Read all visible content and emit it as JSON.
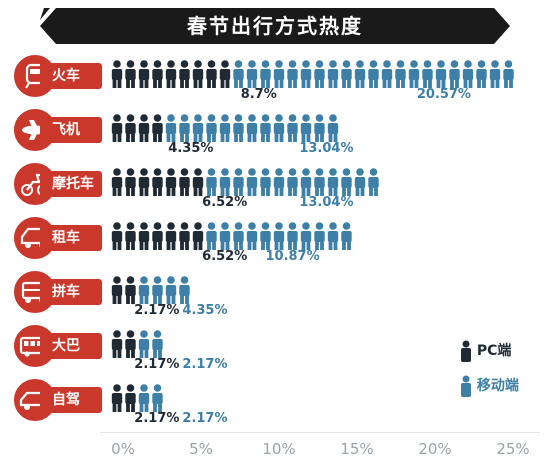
{
  "title": "春节出行方式热度",
  "chart_data": {
    "type": "bar",
    "title": "春节出行方式热度",
    "categories": [
      "火车",
      "飞机",
      "摩托车",
      "租车",
      "拼车",
      "大巴",
      "自驾"
    ],
    "series": [
      {
        "name": "PC端",
        "values": [
          8.7,
          4.35,
          6.52,
          6.52,
          2.17,
          2.17,
          2.17
        ],
        "labels": [
          "8.7%",
          "4.35%",
          "6.52%",
          "6.52%",
          "2.17%",
          "2.17%",
          "2.17%"
        ]
      },
      {
        "name": "移动端",
        "values": [
          20.57,
          13.04,
          13.04,
          10.87,
          4.35,
          2.17,
          2.17
        ],
        "labels": [
          "20.57%",
          "13.04%",
          "13.04%",
          "10.87%",
          "4.35%",
          "2.17%",
          "2.17%"
        ]
      }
    ],
    "xticks": [
      "0%",
      "5%",
      "10%",
      "15%",
      "20%",
      "25%"
    ],
    "xlim": [
      0,
      25
    ],
    "person_unit_percent": 1.0,
    "icons": [
      "train-icon",
      "airplane-icon",
      "motorcycle-icon",
      "car-icon",
      "jeep-icon",
      "bus-icon",
      "sedan-icon"
    ]
  },
  "legend": [
    {
      "label": "PC端",
      "color": "#1f2a35"
    },
    {
      "label": "移动端",
      "color": "#3d7fa6"
    }
  ],
  "colors": {
    "pc": "#1f2a35",
    "mobile": "#3d7fa6",
    "label_bg": "#c9382b",
    "banner": "#1a1a1a"
  }
}
